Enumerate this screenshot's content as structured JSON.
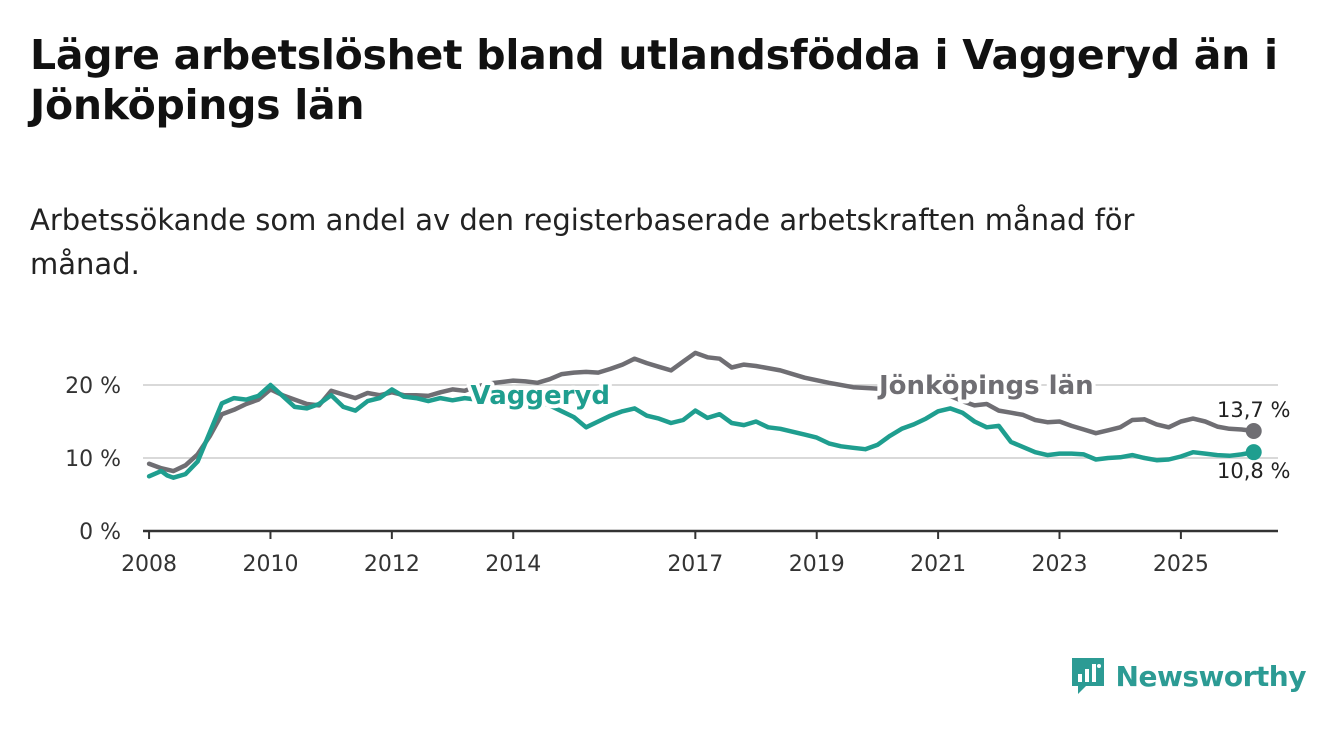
{
  "header": {
    "title": "Lägre arbetslöshet bland utlandsfödda i Vaggeryd än i Jönköpings län",
    "subtitle": "Arbetssökande som andel av den registerbaserade arbetskraften månad för månad."
  },
  "brand": {
    "name": "Newsworthy",
    "color": "#2c9b94",
    "icon": "bar-chart-speech-icon"
  },
  "chart_data": {
    "type": "line",
    "title": "Lägre arbetslöshet bland utlandsfödda i Vaggeryd än i Jönköpings län",
    "xlabel": "",
    "ylabel": "",
    "xlim": [
      2007.9,
      2026.6
    ],
    "ylim": [
      0,
      20
    ],
    "y_ticks": [
      0,
      10,
      20
    ],
    "y_tick_labels": [
      "0 %",
      "10 %",
      "20 %"
    ],
    "x_ticks": [
      2008,
      2010,
      2012,
      2014,
      2017,
      2019,
      2021,
      2023,
      2025
    ],
    "x_tick_labels": [
      "2008",
      "2010",
      "2012",
      "2014",
      "2017",
      "2019",
      "2021",
      "2023",
      "2025"
    ],
    "grid": true,
    "series": [
      {
        "name": "Jönköpings län",
        "color": "#6f6e73",
        "end_label": "13,7 %",
        "points": [
          [
            2008.0,
            9.2
          ],
          [
            2008.2,
            8.6
          ],
          [
            2008.4,
            8.2
          ],
          [
            2008.6,
            9.0
          ],
          [
            2008.8,
            10.5
          ],
          [
            2009.0,
            13.0
          ],
          [
            2009.2,
            16.0
          ],
          [
            2009.4,
            16.6
          ],
          [
            2009.6,
            17.4
          ],
          [
            2009.8,
            18.0
          ],
          [
            2010.0,
            19.4
          ],
          [
            2010.2,
            18.6
          ],
          [
            2010.4,
            18.0
          ],
          [
            2010.6,
            17.4
          ],
          [
            2010.8,
            17.2
          ],
          [
            2011.0,
            19.2
          ],
          [
            2011.2,
            18.7
          ],
          [
            2011.4,
            18.2
          ],
          [
            2011.6,
            18.9
          ],
          [
            2011.8,
            18.6
          ],
          [
            2012.0,
            19.0
          ],
          [
            2012.2,
            18.6
          ],
          [
            2012.4,
            18.6
          ],
          [
            2012.6,
            18.5
          ],
          [
            2012.8,
            19.0
          ],
          [
            2013.0,
            19.4
          ],
          [
            2013.2,
            19.2
          ],
          [
            2013.4,
            19.8
          ],
          [
            2013.6,
            20.2
          ],
          [
            2013.8,
            20.4
          ],
          [
            2014.0,
            20.6
          ],
          [
            2014.2,
            20.5
          ],
          [
            2014.4,
            20.3
          ],
          [
            2014.6,
            20.8
          ],
          [
            2014.8,
            21.5
          ],
          [
            2015.0,
            21.7
          ],
          [
            2015.2,
            21.8
          ],
          [
            2015.4,
            21.7
          ],
          [
            2015.6,
            22.2
          ],
          [
            2015.8,
            22.8
          ],
          [
            2016.0,
            23.6
          ],
          [
            2016.2,
            23.0
          ],
          [
            2016.4,
            22.5
          ],
          [
            2016.6,
            22.0
          ],
          [
            2016.8,
            23.2
          ],
          [
            2017.0,
            24.4
          ],
          [
            2017.2,
            23.8
          ],
          [
            2017.4,
            23.6
          ],
          [
            2017.6,
            22.4
          ],
          [
            2017.8,
            22.8
          ],
          [
            2018.0,
            22.6
          ],
          [
            2018.4,
            22.0
          ],
          [
            2018.8,
            21.0
          ],
          [
            2019.2,
            20.3
          ],
          [
            2019.6,
            19.7
          ],
          [
            2020.0,
            19.5
          ],
          [
            2020.4,
            20.6
          ],
          [
            2020.8,
            20.2
          ],
          [
            2021.0,
            19.3
          ],
          [
            2021.2,
            18.5
          ],
          [
            2021.4,
            17.8
          ],
          [
            2021.6,
            17.2
          ],
          [
            2021.8,
            17.4
          ],
          [
            2022.0,
            16.5
          ],
          [
            2022.2,
            16.2
          ],
          [
            2022.4,
            15.9
          ],
          [
            2022.6,
            15.2
          ],
          [
            2022.8,
            14.9
          ],
          [
            2023.0,
            15.0
          ],
          [
            2023.2,
            14.4
          ],
          [
            2023.4,
            13.9
          ],
          [
            2023.6,
            13.4
          ],
          [
            2023.8,
            13.8
          ],
          [
            2024.0,
            14.2
          ],
          [
            2024.2,
            15.2
          ],
          [
            2024.4,
            15.3
          ],
          [
            2024.6,
            14.6
          ],
          [
            2024.8,
            14.2
          ],
          [
            2025.0,
            15.0
          ],
          [
            2025.2,
            15.4
          ],
          [
            2025.4,
            15.0
          ],
          [
            2025.6,
            14.3
          ],
          [
            2025.8,
            14.0
          ],
          [
            2026.0,
            13.9
          ],
          [
            2026.2,
            13.7
          ]
        ]
      },
      {
        "name": "Vaggeryd",
        "color": "#1f9e8f",
        "end_label": "10,8 %",
        "points": [
          [
            2008.0,
            7.5
          ],
          [
            2008.2,
            8.2
          ],
          [
            2008.3,
            7.6
          ],
          [
            2008.4,
            7.3
          ],
          [
            2008.6,
            7.8
          ],
          [
            2008.8,
            9.5
          ],
          [
            2009.0,
            13.5
          ],
          [
            2009.2,
            17.5
          ],
          [
            2009.4,
            18.2
          ],
          [
            2009.6,
            18.0
          ],
          [
            2009.8,
            18.5
          ],
          [
            2010.0,
            20.0
          ],
          [
            2010.2,
            18.5
          ],
          [
            2010.4,
            17.0
          ],
          [
            2010.6,
            16.8
          ],
          [
            2010.8,
            17.4
          ],
          [
            2011.0,
            18.6
          ],
          [
            2011.2,
            17.0
          ],
          [
            2011.4,
            16.5
          ],
          [
            2011.6,
            17.8
          ],
          [
            2011.8,
            18.2
          ],
          [
            2012.0,
            19.4
          ],
          [
            2012.2,
            18.4
          ],
          [
            2012.4,
            18.2
          ],
          [
            2012.6,
            17.8
          ],
          [
            2012.8,
            18.2
          ],
          [
            2013.0,
            17.9
          ],
          [
            2013.2,
            18.2
          ],
          [
            2013.4,
            18.0
          ],
          [
            2013.6,
            17.9
          ],
          [
            2013.8,
            18.0
          ],
          [
            2014.0,
            17.9
          ],
          [
            2014.2,
            17.8
          ],
          [
            2014.4,
            17.8
          ],
          [
            2014.6,
            17.2
          ],
          [
            2014.8,
            16.4
          ],
          [
            2015.0,
            15.6
          ],
          [
            2015.2,
            14.2
          ],
          [
            2015.4,
            15.0
          ],
          [
            2015.6,
            15.8
          ],
          [
            2015.8,
            16.4
          ],
          [
            2016.0,
            16.8
          ],
          [
            2016.2,
            15.8
          ],
          [
            2016.4,
            15.4
          ],
          [
            2016.6,
            14.8
          ],
          [
            2016.8,
            15.2
          ],
          [
            2017.0,
            16.5
          ],
          [
            2017.2,
            15.5
          ],
          [
            2017.4,
            16.0
          ],
          [
            2017.6,
            14.8
          ],
          [
            2017.8,
            14.5
          ],
          [
            2018.0,
            15.0
          ],
          [
            2018.2,
            14.2
          ],
          [
            2018.4,
            14.0
          ],
          [
            2018.6,
            13.6
          ],
          [
            2018.8,
            13.2
          ],
          [
            2019.0,
            12.8
          ],
          [
            2019.2,
            12.0
          ],
          [
            2019.4,
            11.6
          ],
          [
            2019.6,
            11.4
          ],
          [
            2019.8,
            11.2
          ],
          [
            2020.0,
            11.8
          ],
          [
            2020.2,
            13.0
          ],
          [
            2020.4,
            14.0
          ],
          [
            2020.6,
            14.6
          ],
          [
            2020.8,
            15.4
          ],
          [
            2021.0,
            16.4
          ],
          [
            2021.2,
            16.8
          ],
          [
            2021.4,
            16.2
          ],
          [
            2021.6,
            15.0
          ],
          [
            2021.8,
            14.2
          ],
          [
            2022.0,
            14.4
          ],
          [
            2022.2,
            12.2
          ],
          [
            2022.4,
            11.5
          ],
          [
            2022.6,
            10.8
          ],
          [
            2022.8,
            10.4
          ],
          [
            2023.0,
            10.6
          ],
          [
            2023.2,
            10.6
          ],
          [
            2023.4,
            10.5
          ],
          [
            2023.6,
            9.8
          ],
          [
            2023.8,
            10.0
          ],
          [
            2024.0,
            10.1
          ],
          [
            2024.2,
            10.4
          ],
          [
            2024.4,
            10.0
          ],
          [
            2024.6,
            9.7
          ],
          [
            2024.8,
            9.8
          ],
          [
            2025.0,
            10.2
          ],
          [
            2025.2,
            10.8
          ],
          [
            2025.4,
            10.6
          ],
          [
            2025.6,
            10.4
          ],
          [
            2025.8,
            10.3
          ],
          [
            2026.0,
            10.5
          ],
          [
            2026.2,
            10.8
          ]
        ]
      }
    ]
  }
}
